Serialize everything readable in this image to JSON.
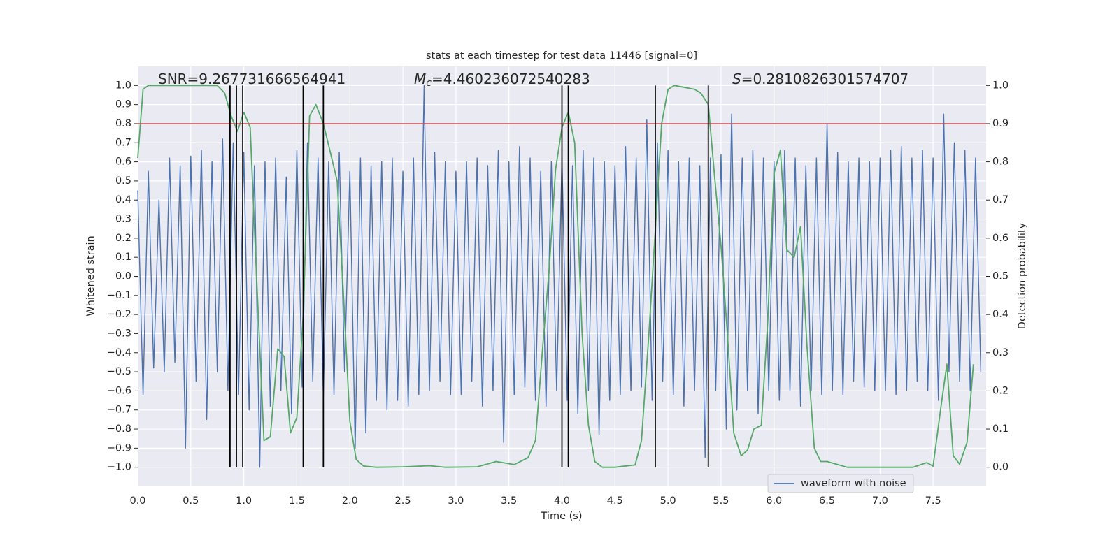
{
  "chart_data": {
    "type": "line",
    "title": "stats at each timestep for test data 11446 [signal=0]",
    "xlabel": "Time (s)",
    "ylabel": "Whitened strain",
    "y2label": "Detection probability",
    "annotations": [
      {
        "text": "SNR=9.267731666564941"
      },
      {
        "symbol": "M",
        "subscript": "c",
        "text": "=4.460236072540283"
      },
      {
        "symbol": "S",
        "text": "=0.2810826301574707"
      }
    ],
    "xlim": [
      0,
      8
    ],
    "ylim": [
      -1.1,
      1.1
    ],
    "y2lim": [
      -0.05,
      1.05
    ],
    "xticks": [
      {
        "value": 0,
        "label": "0.0"
      },
      0.5,
      {
        "value": 1,
        "label": "1.0"
      },
      1.5,
      {
        "value": 2,
        "label": "2.0"
      },
      2.5,
      {
        "value": 3,
        "label": "3.0"
      },
      3.5,
      {
        "value": 4,
        "label": "4.0"
      },
      4.5,
      {
        "value": 5,
        "label": "5.0"
      },
      5.5,
      {
        "value": 6,
        "label": "6.0"
      },
      6.5,
      {
        "value": 7,
        "label": "7.0"
      },
      7.5
    ],
    "yticks": [
      {
        "value": -1,
        "label": "−1.0"
      },
      {
        "value": -0.9,
        "label": "−0.9"
      },
      {
        "value": -0.8,
        "label": "−0.8"
      },
      {
        "value": -0.7,
        "label": "−0.7"
      },
      {
        "value": -0.6,
        "label": "−0.6"
      },
      {
        "value": -0.5,
        "label": "−0.5"
      },
      {
        "value": -0.4,
        "label": "−0.4"
      },
      {
        "value": -0.3,
        "label": "−0.3"
      },
      {
        "value": -0.2,
        "label": "−0.2"
      },
      {
        "value": -0.1,
        "label": "−0.1"
      },
      {
        "value": 0,
        "label": "0.0"
      },
      0.1,
      0.2,
      0.3,
      0.4,
      0.5,
      0.6,
      0.7,
      0.8,
      0.9,
      {
        "value": 1,
        "label": "1.0"
      }
    ],
    "y2ticks": [
      {
        "value": 0,
        "label": "0.0"
      },
      0.1,
      0.2,
      0.3,
      0.4,
      0.5,
      0.6,
      0.7,
      0.8,
      0.9,
      {
        "value": 1,
        "label": "1.0"
      }
    ],
    "grid": true,
    "legend": "lower right",
    "series": [
      {
        "name": "waveform with noise",
        "color": "#4c72b0",
        "x": [
          0,
          0.05,
          0.1,
          0.15,
          0.2,
          0.25,
          0.3,
          0.35,
          0.4,
          0.45,
          0.5,
          0.55,
          0.6,
          0.65,
          0.7,
          0.75,
          0.8,
          0.85,
          0.9,
          0.95,
          1,
          1.05,
          1.1,
          1.15,
          1.2,
          1.25,
          1.3,
          1.35,
          1.4,
          1.45,
          1.5,
          1.55,
          1.6,
          1.65,
          1.7,
          1.75,
          1.8,
          1.85,
          1.9,
          1.95,
          2,
          2.05,
          2.1,
          2.15,
          2.2,
          2.25,
          2.3,
          2.35,
          2.4,
          2.45,
          2.5,
          2.55,
          2.6,
          2.65,
          2.7,
          2.75,
          2.8,
          2.85,
          2.9,
          2.95,
          3,
          3.05,
          3.1,
          3.15,
          3.2,
          3.25,
          3.3,
          3.35,
          3.4,
          3.45,
          3.5,
          3.55,
          3.6,
          3.65,
          3.7,
          3.75,
          3.8,
          3.85,
          3.9,
          3.95,
          4,
          4.05,
          4.1,
          4.15,
          4.2,
          4.25,
          4.3,
          4.35,
          4.4,
          4.45,
          4.5,
          4.55,
          4.6,
          4.65,
          4.7,
          4.75,
          4.8,
          4.85,
          4.9,
          4.95,
          5,
          5.05,
          5.1,
          5.15,
          5.2,
          5.25,
          5.3,
          5.35,
          5.4,
          5.45,
          5.5,
          5.55,
          5.6,
          5.65,
          5.7,
          5.75,
          5.8,
          5.85,
          5.9,
          5.95,
          6,
          6.05,
          6.1,
          6.15,
          6.2,
          6.25,
          6.3,
          6.35,
          6.4,
          6.45,
          6.5,
          6.55,
          6.6,
          6.65,
          6.7,
          6.75,
          6.8,
          6.85,
          6.9,
          6.95,
          7,
          7.05,
          7.1,
          7.15,
          7.2,
          7.25,
          7.3,
          7.35,
          7.4,
          7.45,
          7.5,
          7.55,
          7.6,
          7.65,
          7.7,
          7.75,
          7.8,
          7.85,
          7.9,
          7.95
        ],
        "values": [
          0.45,
          -0.62,
          0.55,
          -0.48,
          0.4,
          -0.5,
          0.62,
          -0.45,
          0.58,
          -0.9,
          0.63,
          -0.55,
          0.66,
          -0.75,
          0.6,
          -0.5,
          0.72,
          -0.6,
          0.7,
          -0.62,
          0.65,
          -0.7,
          0.58,
          -1.0,
          0.6,
          -0.68,
          0.62,
          -0.6,
          0.52,
          -0.72,
          0.66,
          -0.58,
          0.7,
          -0.55,
          0.62,
          -0.63,
          0.6,
          -0.62,
          0.65,
          -0.5,
          0.55,
          -0.9,
          0.62,
          -0.82,
          0.58,
          -0.65,
          0.6,
          -0.7,
          0.62,
          -0.65,
          0.55,
          -0.68,
          0.62,
          -0.62,
          1.0,
          -0.6,
          0.65,
          -0.55,
          0.6,
          -0.62,
          0.55,
          -0.62,
          0.6,
          -0.55,
          0.62,
          -0.68,
          0.58,
          -0.6,
          0.66,
          -0.87,
          0.6,
          -0.62,
          0.68,
          -0.58,
          0.62,
          -0.65,
          0.55,
          -0.68,
          0.6,
          -0.6,
          0.62,
          -0.65,
          0.58,
          -0.72,
          0.66,
          -0.6,
          0.62,
          -0.83,
          0.6,
          -0.65,
          0.58,
          -0.62,
          0.68,
          -0.6,
          0.62,
          -0.58,
          0.82,
          -0.65,
          0.7,
          -0.55,
          0.66,
          -0.62,
          0.6,
          -0.68,
          0.62,
          -0.6,
          0.58,
          -0.95,
          0.62,
          -0.6,
          0.64,
          -0.8,
          0.85,
          -0.7,
          0.62,
          -0.6,
          0.66,
          -0.72,
          0.62,
          -0.6,
          0.6,
          -0.65,
          0.66,
          -0.6,
          0.62,
          -0.68,
          0.58,
          -0.6,
          0.62,
          -0.62,
          0.8,
          -0.6,
          0.65,
          -0.62,
          0.6,
          -0.55,
          0.62,
          -0.58,
          0.6,
          -0.6,
          0.62,
          -0.6,
          0.66,
          -0.62,
          0.68,
          -0.6,
          0.62,
          -0.55,
          0.66,
          -0.6,
          0.62,
          -0.65,
          0.85,
          -0.5,
          0.7,
          -0.55,
          0.66,
          -0.6,
          0.62,
          -0.5
        ]
      },
      {
        "color": "#55a868",
        "axis": "y2",
        "x": [
          0,
          0.05,
          0.1,
          0.2,
          0.75,
          0.82,
          0.88,
          0.94,
          1,
          1.06,
          1.12,
          1.19,
          1.25,
          1.32,
          1.38,
          1.44,
          1.5,
          1.56,
          1.62,
          1.68,
          1.75,
          1.82,
          1.88,
          1.94,
          2,
          2.06,
          2.13,
          2.25,
          2.5,
          2.75,
          2.9,
          3.2,
          3.38,
          3.55,
          3.68,
          3.75,
          3.82,
          3.88,
          3.94,
          4,
          4.06,
          4.12,
          4.19,
          4.25,
          4.31,
          4.38,
          4.5,
          4.69,
          4.75,
          4.82,
          4.88,
          4.94,
          5,
          5.06,
          5.25,
          5.31,
          5.38,
          5.44,
          5.5,
          5.56,
          5.62,
          5.69,
          5.75,
          5.81,
          5.88,
          5.94,
          6,
          6.06,
          6.12,
          6.19,
          6.25,
          6.31,
          6.38,
          6.44,
          6.5,
          6.69,
          7,
          7.31,
          7.44,
          7.5,
          7.57,
          7.63,
          7.69,
          7.75,
          7.82,
          7.88
        ],
        "values": [
          0.81,
          0.99,
          1.0,
          1.0,
          1.0,
          0.98,
          0.92,
          0.88,
          0.93,
          0.89,
          0.5,
          0.07,
          0.08,
          0.31,
          0.29,
          0.09,
          0.13,
          0.4,
          0.92,
          0.95,
          0.9,
          0.82,
          0.75,
          0.45,
          0.12,
          0.02,
          0.003,
          0.0,
          0.001,
          0.004,
          0.0,
          0.001,
          0.015,
          0.007,
          0.025,
          0.07,
          0.32,
          0.52,
          0.78,
          0.89,
          0.93,
          0.85,
          0.35,
          0.11,
          0.015,
          0.0,
          0.0,
          0.006,
          0.07,
          0.35,
          0.62,
          0.9,
          0.99,
          1.0,
          0.99,
          0.98,
          0.95,
          0.76,
          0.58,
          0.35,
          0.09,
          0.03,
          0.045,
          0.1,
          0.11,
          0.38,
          0.77,
          0.83,
          0.57,
          0.55,
          0.63,
          0.32,
          0.05,
          0.015,
          0.015,
          0.0,
          0.0,
          0.0,
          0.012,
          0.003,
          0.15,
          0.27,
          0.03,
          0.008,
          0.065,
          0.27
        ]
      }
    ],
    "vlines": {
      "x": [
        0.87,
        0.93,
        0.99,
        1.56,
        1.75,
        4.0,
        4.06,
        4.88,
        5.38
      ],
      "ymin": -1,
      "ymax": 1,
      "color": "#000000"
    },
    "hline": {
      "y": 0.8,
      "color": "#c44e52"
    }
  }
}
